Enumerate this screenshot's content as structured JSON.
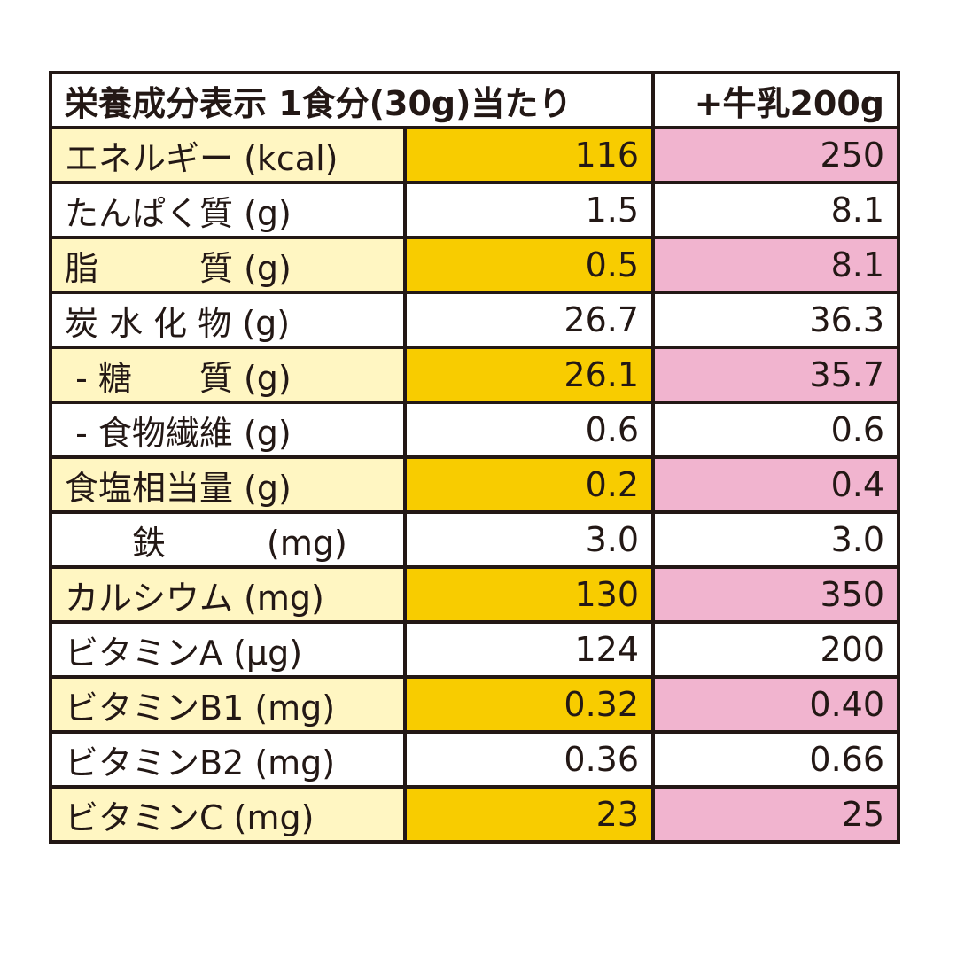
{
  "header": {
    "title": "栄養成分表示 1食分(30g)当たり",
    "milk": "+牛乳200g"
  },
  "table": {
    "rows": [
      [
        "エネルギー (kcal)",
        "116",
        "250"
      ],
      [
        "たんぱく質 (g)",
        "1.5",
        "8.1"
      ],
      [
        "脂　　　質 (g)",
        "0.5",
        "8.1"
      ],
      [
        "炭 水 化 物 (g)",
        "26.7",
        "36.3"
      ],
      [
        " - 糖　　質 (g)",
        "26.1",
        "35.7"
      ],
      [
        " - 食物繊維 (g)",
        "0.6",
        "0.6"
      ],
      [
        "食塩相当量 (g)",
        "0.2",
        "0.4"
      ],
      [
        "　　鉄　　　(mg)",
        "3.0",
        "3.0"
      ],
      [
        "カルシウム (mg)",
        "130",
        "350"
      ],
      [
        "ビタミンA (μg)",
        "124",
        "200"
      ],
      [
        "ビタミンB1 (mg)",
        "0.32",
        "0.40"
      ],
      [
        "ビタミンB2 (mg)",
        "0.36",
        "0.66"
      ],
      [
        "ビタミンC (mg)",
        "23",
        "25"
      ]
    ]
  }
}
